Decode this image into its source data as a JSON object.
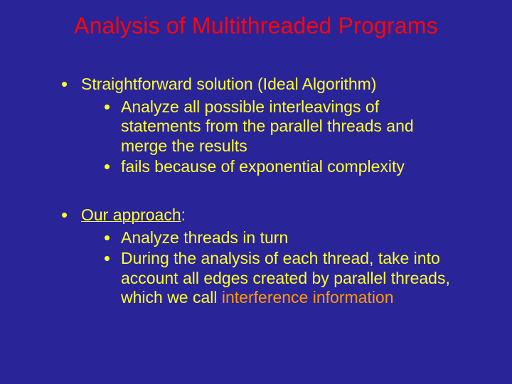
{
  "colors": {
    "background": "#2a2499",
    "title": "#ff0505",
    "body": "#ffff2a",
    "highlight": "#ff9a00"
  },
  "title": "Analysis of Multithreaded Programs",
  "bullets": [
    {
      "text": "Straightforward solution (Ideal Algorithm)",
      "sub": [
        "Analyze all possible interleavings of statements from the parallel threads and merge the results",
        "fails because of exponential complexity"
      ]
    },
    {
      "text_prefix": "Our approach",
      "text_suffix": ":",
      "sub": [
        "Analyze threads in turn",
        {
          "prefix": "During the analysis of each thread, take into account all edges created by parallel threads, which we call ",
          "highlight": "interference information"
        }
      ]
    }
  ]
}
